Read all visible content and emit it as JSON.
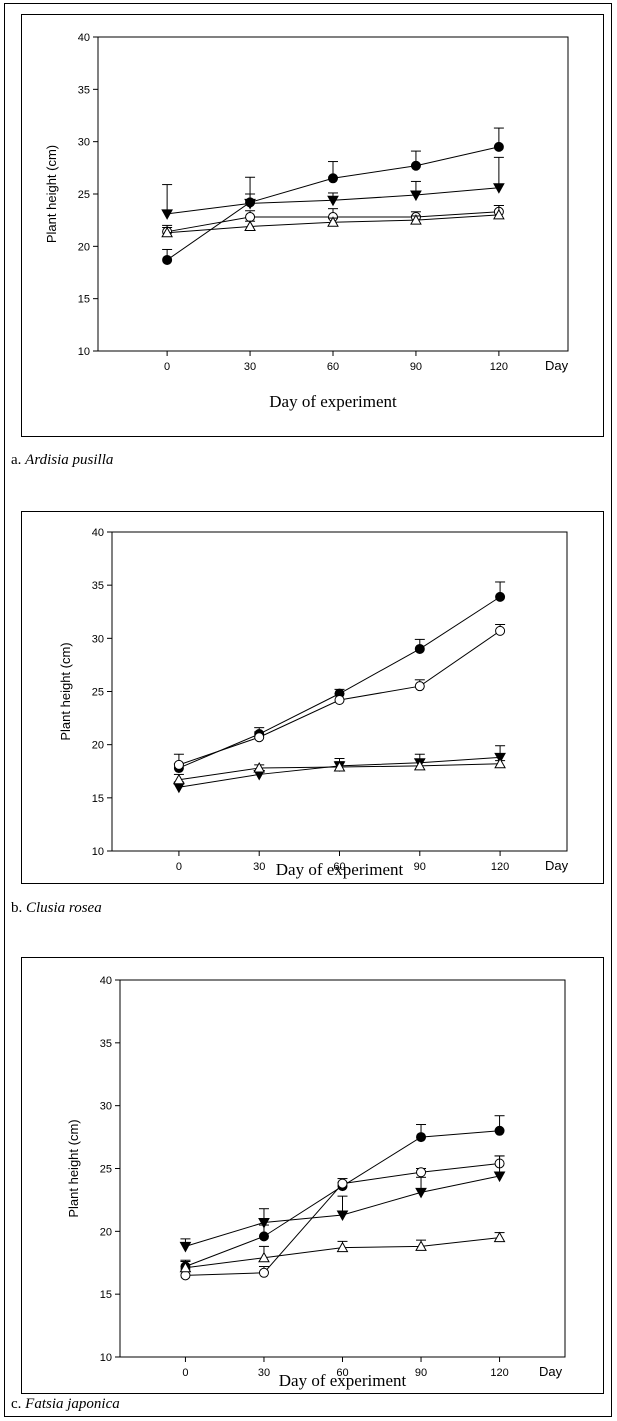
{
  "chart_data": [
    {
      "type": "line",
      "caption_prefix": "a.",
      "species": "Ardisia pusilla",
      "xlabel": "Day of experiment",
      "ylabel": "Plant height (cm)",
      "x_unit": "Day",
      "x": [
        0,
        30,
        60,
        90,
        120
      ],
      "xlim": [
        -25,
        145
      ],
      "ylim": [
        10,
        40
      ],
      "yticks": [
        10,
        15,
        20,
        25,
        30,
        35,
        40
      ],
      "series": [
        {
          "marker": "filled-circle",
          "values": [
            18.7,
            24.2,
            26.5,
            27.7,
            29.5
          ],
          "errors": [
            1.0,
            2.4,
            1.6,
            1.4,
            1.8
          ]
        },
        {
          "marker": "filled-triangle-down",
          "values": [
            23.1,
            24.1,
            24.4,
            24.9,
            25.6
          ],
          "errors": [
            2.8,
            0.9,
            0.7,
            1.3,
            2.9
          ]
        },
        {
          "marker": "open-circle",
          "values": [
            21.4,
            22.8,
            22.8,
            22.8,
            23.3
          ],
          "errors": [
            0.6,
            0.6,
            0.8,
            0.5,
            0.6
          ]
        },
        {
          "marker": "open-triangle-up",
          "values": [
            21.3,
            21.9,
            22.3,
            22.5,
            23.0
          ],
          "errors": [
            0.5,
            0.5,
            0.4,
            0.4,
            0.9
          ]
        }
      ]
    },
    {
      "type": "line",
      "caption_prefix": "b.",
      "species": "Clusia rosea",
      "xlabel": "Day of experiment",
      "ylabel": "Plant height (cm)",
      "x_unit": "Day",
      "x": [
        0,
        30,
        60,
        90,
        120
      ],
      "xlim": [
        -25,
        145
      ],
      "ylim": [
        10,
        40
      ],
      "yticks": [
        10,
        15,
        20,
        25,
        30,
        35,
        40
      ],
      "series": [
        {
          "marker": "filled-circle",
          "values": [
            17.8,
            21.0,
            24.8,
            29.0,
            33.9
          ],
          "errors": [
            0.4,
            0.6,
            0.4,
            0.9,
            1.4
          ]
        },
        {
          "marker": "open-circle",
          "values": [
            18.1,
            20.7,
            24.2,
            25.5,
            30.7
          ],
          "errors": [
            1.0,
            0.5,
            0.6,
            0.6,
            0.6
          ]
        },
        {
          "marker": "filled-triangle-down",
          "values": [
            16.0,
            17.2,
            18.0,
            18.3,
            18.8
          ],
          "errors": [
            0.5,
            0.3,
            0.7,
            0.8,
            1.1
          ]
        },
        {
          "marker": "open-triangle-up",
          "values": [
            16.7,
            17.8,
            17.9,
            18.0,
            18.2
          ],
          "errors": [
            0.5,
            0.3,
            0.5,
            0.6,
            0.3
          ]
        }
      ]
    },
    {
      "type": "line",
      "caption_prefix": "c.",
      "species": "Fatsia japonica",
      "xlabel": "Day of experiment",
      "ylabel": "Plant  height (cm)",
      "x_unit": "Day",
      "x": [
        0,
        30,
        60,
        90,
        120
      ],
      "xlim": [
        -25,
        145
      ],
      "ylim": [
        10,
        40
      ],
      "yticks": [
        10,
        15,
        20,
        25,
        30,
        35,
        40
      ],
      "series": [
        {
          "marker": "filled-circle",
          "values": [
            17.2,
            19.6,
            23.6,
            27.5,
            28.0
          ],
          "errors": [
            0.4,
            0.9,
            0.3,
            1.0,
            1.2
          ]
        },
        {
          "marker": "open-circle",
          "values": [
            16.5,
            16.7,
            23.8,
            24.7,
            25.4
          ],
          "errors": [
            0.5,
            0.5,
            0.4,
            0.3,
            0.6
          ]
        },
        {
          "marker": "filled-triangle-down",
          "values": [
            18.8,
            20.7,
            21.3,
            23.1,
            24.4
          ],
          "errors": [
            0.6,
            1.1,
            1.5,
            1.2,
            1.6
          ]
        },
        {
          "marker": "open-triangle-up",
          "values": [
            17.1,
            17.9,
            18.7,
            18.8,
            19.5
          ],
          "errors": [
            0.6,
            0.9,
            0.5,
            0.5,
            0.4
          ]
        }
      ]
    }
  ]
}
